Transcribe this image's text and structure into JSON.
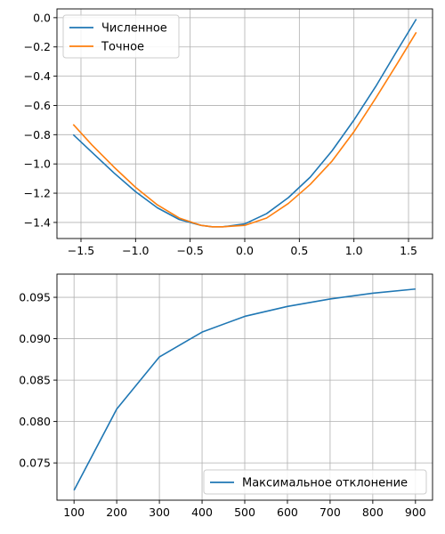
{
  "chart_data": [
    {
      "type": "line",
      "title": "",
      "xlabel": "",
      "ylabel": "",
      "xlim": [
        -1.72,
        1.72
      ],
      "ylim": [
        -1.51,
        0.06
      ],
      "grid": true,
      "legend_position": "upper-left",
      "x_ticks": [
        -1.5,
        -1.0,
        -0.5,
        0.0,
        0.5,
        1.0,
        1.5
      ],
      "x_tick_labels": [
        "−1.5",
        "−1.0",
        "−0.5",
        "0.0",
        "0.5",
        "1.0",
        "1.5"
      ],
      "y_ticks": [
        0.0,
        -0.2,
        -0.4,
        -0.6,
        -0.8,
        -1.0,
        -1.2,
        -1.4
      ],
      "y_tick_labels": [
        "0.0",
        "−0.2",
        "−0.4",
        "−0.6",
        "−0.8",
        "−1.0",
        "−1.2",
        "−1.4"
      ],
      "series": [
        {
          "name": "Численное",
          "color": "#1f77b4",
          "x": [
            -1.5708,
            -1.4,
            -1.2,
            -1.0,
            -0.8,
            -0.6,
            -0.4,
            -0.3,
            -0.2,
            0.0,
            0.2,
            0.4,
            0.6,
            0.8,
            1.0,
            1.2,
            1.4,
            1.5708
          ],
          "y": [
            -0.8,
            -0.92,
            -1.06,
            -1.19,
            -1.3,
            -1.38,
            -1.42,
            -1.43,
            -1.43,
            -1.41,
            -1.34,
            -1.23,
            -1.09,
            -0.91,
            -0.7,
            -0.47,
            -0.22,
            -0.01
          ]
        },
        {
          "name": "Точное",
          "color": "#ff7f0e",
          "x": [
            -1.5708,
            -1.4,
            -1.2,
            -1.0,
            -0.8,
            -0.6,
            -0.4,
            -0.3,
            -0.2,
            0.0,
            0.2,
            0.4,
            0.6,
            0.8,
            1.0,
            1.2,
            1.4,
            1.5708
          ],
          "y": [
            -0.73,
            -0.87,
            -1.02,
            -1.16,
            -1.28,
            -1.37,
            -1.42,
            -1.43,
            -1.43,
            -1.42,
            -1.37,
            -1.27,
            -1.14,
            -0.98,
            -0.78,
            -0.55,
            -0.31,
            -0.1
          ]
        }
      ]
    },
    {
      "type": "line",
      "title": "",
      "xlabel": "",
      "ylabel": "",
      "xlim": [
        60,
        940
      ],
      "ylim": [
        0.0705,
        0.0978
      ],
      "grid": true,
      "legend_position": "lower-right",
      "x_ticks": [
        100,
        200,
        300,
        400,
        500,
        600,
        700,
        800,
        900
      ],
      "x_tick_labels": [
        "100",
        "200",
        "300",
        "400",
        "500",
        "600",
        "700",
        "800",
        "900"
      ],
      "y_ticks": [
        0.075,
        0.08,
        0.085,
        0.09,
        0.095
      ],
      "y_tick_labels": [
        "0.075",
        "0.080",
        "0.085",
        "0.090",
        "0.095"
      ],
      "series": [
        {
          "name": "Максимальное отклонение",
          "color": "#1f77b4",
          "x": [
            100,
            200,
            300,
            400,
            500,
            600,
            700,
            800,
            900
          ],
          "y": [
            0.0717,
            0.0815,
            0.0878,
            0.0908,
            0.0927,
            0.0939,
            0.0948,
            0.0955,
            0.096
          ]
        }
      ]
    }
  ]
}
